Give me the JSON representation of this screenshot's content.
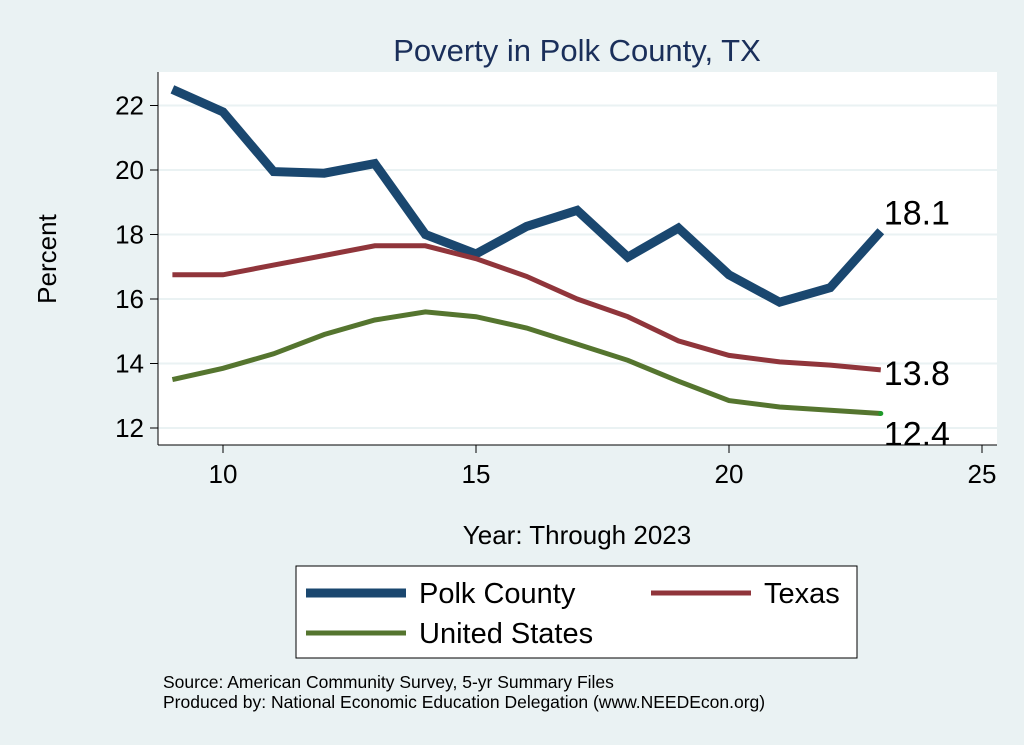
{
  "chart_data": {
    "type": "line",
    "title": "Poverty in Polk County, TX",
    "xlabel": "Year: Through 2023",
    "ylabel": "Percent",
    "xlim": [
      9,
      25
    ],
    "ylim": [
      11.8,
      23
    ],
    "x_ticks": [
      10,
      15,
      20,
      25
    ],
    "y_ticks": [
      12,
      14,
      16,
      18,
      20,
      22
    ],
    "x": [
      9,
      10,
      11,
      12,
      13,
      14,
      15,
      16,
      17,
      18,
      19,
      20,
      21,
      22,
      23
    ],
    "series": [
      {
        "name": "Polk County",
        "color": "#1a476f",
        "values": [
          22.5,
          21.8,
          19.95,
          19.9,
          20.2,
          18.0,
          17.4,
          18.25,
          18.75,
          17.3,
          18.2,
          16.75,
          15.9,
          16.35,
          18.1
        ],
        "end_label": "18.1"
      },
      {
        "name": "Texas",
        "color": "#90353b",
        "values": [
          16.75,
          16.75,
          17.05,
          17.35,
          17.65,
          17.65,
          17.25,
          16.7,
          16.0,
          15.45,
          14.7,
          14.25,
          14.05,
          13.95,
          13.8
        ],
        "end_label": "13.8"
      },
      {
        "name": "United States",
        "color": "#55752f",
        "values": [
          13.5,
          13.85,
          14.3,
          14.9,
          15.35,
          15.6,
          15.45,
          15.1,
          14.6,
          14.1,
          13.45,
          12.85,
          12.65,
          12.55,
          12.45
        ],
        "end_label": "12.4"
      }
    ],
    "legend_position": "bottom",
    "grid": true
  },
  "notes": {
    "source": "Source: American Community Survey, 5-yr Summary Files",
    "produced_by": "Produced by: National Economic Education Delegation (www.NEEDEcon.org)"
  }
}
